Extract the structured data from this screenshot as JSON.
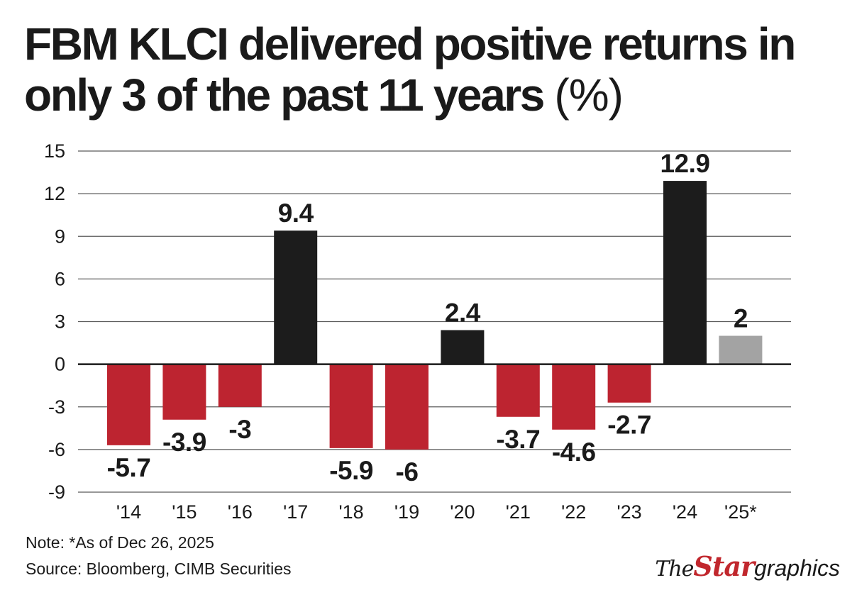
{
  "title_main": "FBM KLCI delivered positive returns in only 3 of the past 11 years",
  "title_unit": "(%)",
  "chart_data": {
    "type": "bar",
    "title": "FBM KLCI delivered positive returns in only 3 of the past 11 years (%)",
    "xlabel": "",
    "ylabel": "",
    "categories": [
      "'14",
      "'15",
      "'16",
      "'17",
      "'18",
      "'19",
      "'20",
      "'21",
      "'22",
      "'23",
      "'24",
      "'25*"
    ],
    "values": [
      -5.7,
      -3.9,
      -3,
      9.4,
      -5.9,
      -6,
      2.4,
      -3.7,
      -4.6,
      -2.7,
      12.9,
      2
    ],
    "value_labels": [
      "-5.7",
      "-3.9",
      "-3",
      "9.4",
      "-5.9",
      "-6",
      "2.4",
      "-3.7",
      "-4.6",
      "-2.7",
      "12.9",
      "2"
    ],
    "ylim": [
      -9,
      15
    ],
    "yticks": [
      15,
      12,
      9,
      6,
      3,
      0,
      -3,
      -6,
      -9
    ],
    "ytick_labels": [
      "15",
      "12",
      "9",
      "6",
      "3",
      "0",
      "-3",
      "-6",
      "-9"
    ],
    "grid": true,
    "legend": "none",
    "colors": {
      "negative": "#bd2430",
      "positive": "#1c1c1c",
      "estimate": "#a3a3a3",
      "grid": "#5a5a5a",
      "zero_line": "#1a1a1a"
    },
    "estimate_category": "'25*"
  },
  "footer": {
    "note": "Note: *As of Dec 26, 2025",
    "source": "Source: Bloomberg, CIMB Securities"
  },
  "brand": {
    "the": "The",
    "star": "Star",
    "graphics": "graphics"
  }
}
